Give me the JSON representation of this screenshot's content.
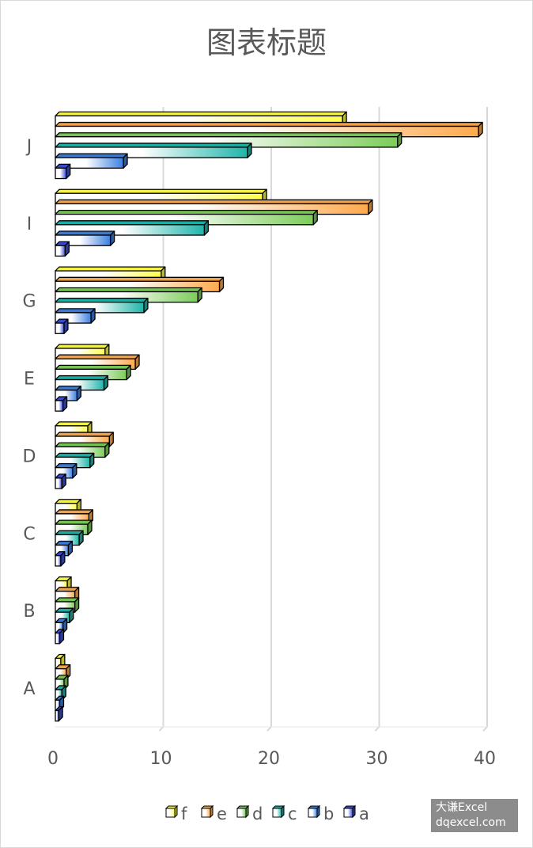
{
  "chart_data": {
    "type": "bar",
    "orientation": "horizontal",
    "title": "图表标题",
    "categories": [
      "A",
      "B",
      "C",
      "D",
      "E",
      "G",
      "I",
      "J"
    ],
    "series": [
      {
        "name": "f",
        "values": [
          0.5,
          1.1,
          2.0,
          3.0,
          4.6,
          9.8,
          19.2,
          26.6
        ],
        "color_start": "#ffffff",
        "color_end": "#ffff4d"
      },
      {
        "name": "e",
        "values": [
          1.0,
          1.8,
          3.1,
          5.0,
          7.4,
          15.2,
          29.0,
          39.2
        ],
        "color_start": "#ffffff",
        "color_end": "#ffa94d"
      },
      {
        "name": "d",
        "values": [
          0.8,
          1.8,
          3.0,
          4.6,
          6.6,
          13.2,
          23.9,
          31.7
        ],
        "color_start": "#ffffff",
        "color_end": "#7ccc5a"
      },
      {
        "name": "c",
        "values": [
          0.6,
          1.3,
          2.2,
          3.2,
          4.5,
          8.2,
          13.8,
          17.8
        ],
        "color_start": "#ffffff",
        "color_end": "#1fb5aa"
      },
      {
        "name": "b",
        "values": [
          0.4,
          0.7,
          1.2,
          1.6,
          2.0,
          3.3,
          5.1,
          6.3
        ],
        "color_start": "#ffffff",
        "color_end": "#3b7fe0"
      },
      {
        "name": "a",
        "values": [
          0.3,
          0.4,
          0.5,
          0.6,
          0.7,
          0.8,
          0.9,
          1.0
        ],
        "color_start": "#ffffff",
        "color_end": "#3a4fd8"
      }
    ],
    "xlim": [
      0,
      40
    ],
    "xticks": [
      0,
      10,
      20,
      30,
      40
    ],
    "xlabel": "",
    "ylabel": "",
    "grid": true,
    "legend": "bottom"
  },
  "watermark": {
    "line1": "大谦Excel",
    "line2": "dqexcel.com"
  }
}
